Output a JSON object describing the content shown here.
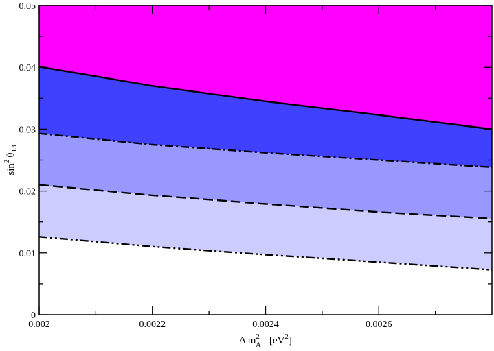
{
  "chart_data": {
    "type": "area",
    "xlim": [
      0.002,
      0.0028
    ],
    "ylim": [
      0,
      0.05
    ],
    "x_ticks_major": [
      "0.002",
      "0.0022",
      "0.0024",
      "0.0026"
    ],
    "x_ticks_major_values": [
      0.002,
      0.0022,
      0.0024,
      0.0026
    ],
    "x_ticks_minor_values": [
      0.0021,
      0.0023,
      0.0025,
      0.0027
    ],
    "y_ticks_major": [
      "0",
      "0.01",
      "0.02",
      "0.03",
      "0.04",
      "0.05"
    ],
    "y_ticks_major_values": [
      0,
      0.01,
      0.02,
      0.03,
      0.04,
      0.05
    ],
    "y_ticks_minor_values": [
      0.005,
      0.015,
      0.025,
      0.035,
      0.045
    ],
    "xlabel": {
      "prefix": "Δ m",
      "sup": "2",
      "sub": "A",
      "unit_open": "[eV",
      "unit_sup": "2",
      "unit_close": "]"
    },
    "ylabel": {
      "base": "sin",
      "sup": "2",
      "theta": "θ",
      "sub": "13"
    },
    "grid": false,
    "legend": "none",
    "top_fill_color": "#ff00ff",
    "series": [
      {
        "line_style": "solid",
        "fill_below": "#4040ff",
        "x": [
          0.002,
          0.0022,
          0.0024,
          0.0026,
          0.00279
        ],
        "y": [
          0.0401,
          0.037,
          0.0345,
          0.0323,
          0.0301
        ]
      },
      {
        "line_style": "dash-dot",
        "fill_below": "#9898ff",
        "x": [
          0.002,
          0.0022,
          0.0024,
          0.0026,
          0.00279
        ],
        "y": [
          0.0293,
          0.0275,
          0.0262,
          0.025,
          0.0239
        ]
      },
      {
        "line_style": "dashed",
        "fill_below": "#ccccff",
        "x": [
          0.002,
          0.0022,
          0.0024,
          0.0026,
          0.00279
        ],
        "y": [
          0.021,
          0.0193,
          0.0179,
          0.0166,
          0.0156
        ]
      },
      {
        "line_style": "dash-dot-dot",
        "fill_below": "#ffffff",
        "x": [
          0.002,
          0.0022,
          0.0024,
          0.0026,
          0.00279
        ],
        "y": [
          0.0126,
          0.011,
          0.0097,
          0.0085,
          0.0073
        ]
      }
    ]
  }
}
